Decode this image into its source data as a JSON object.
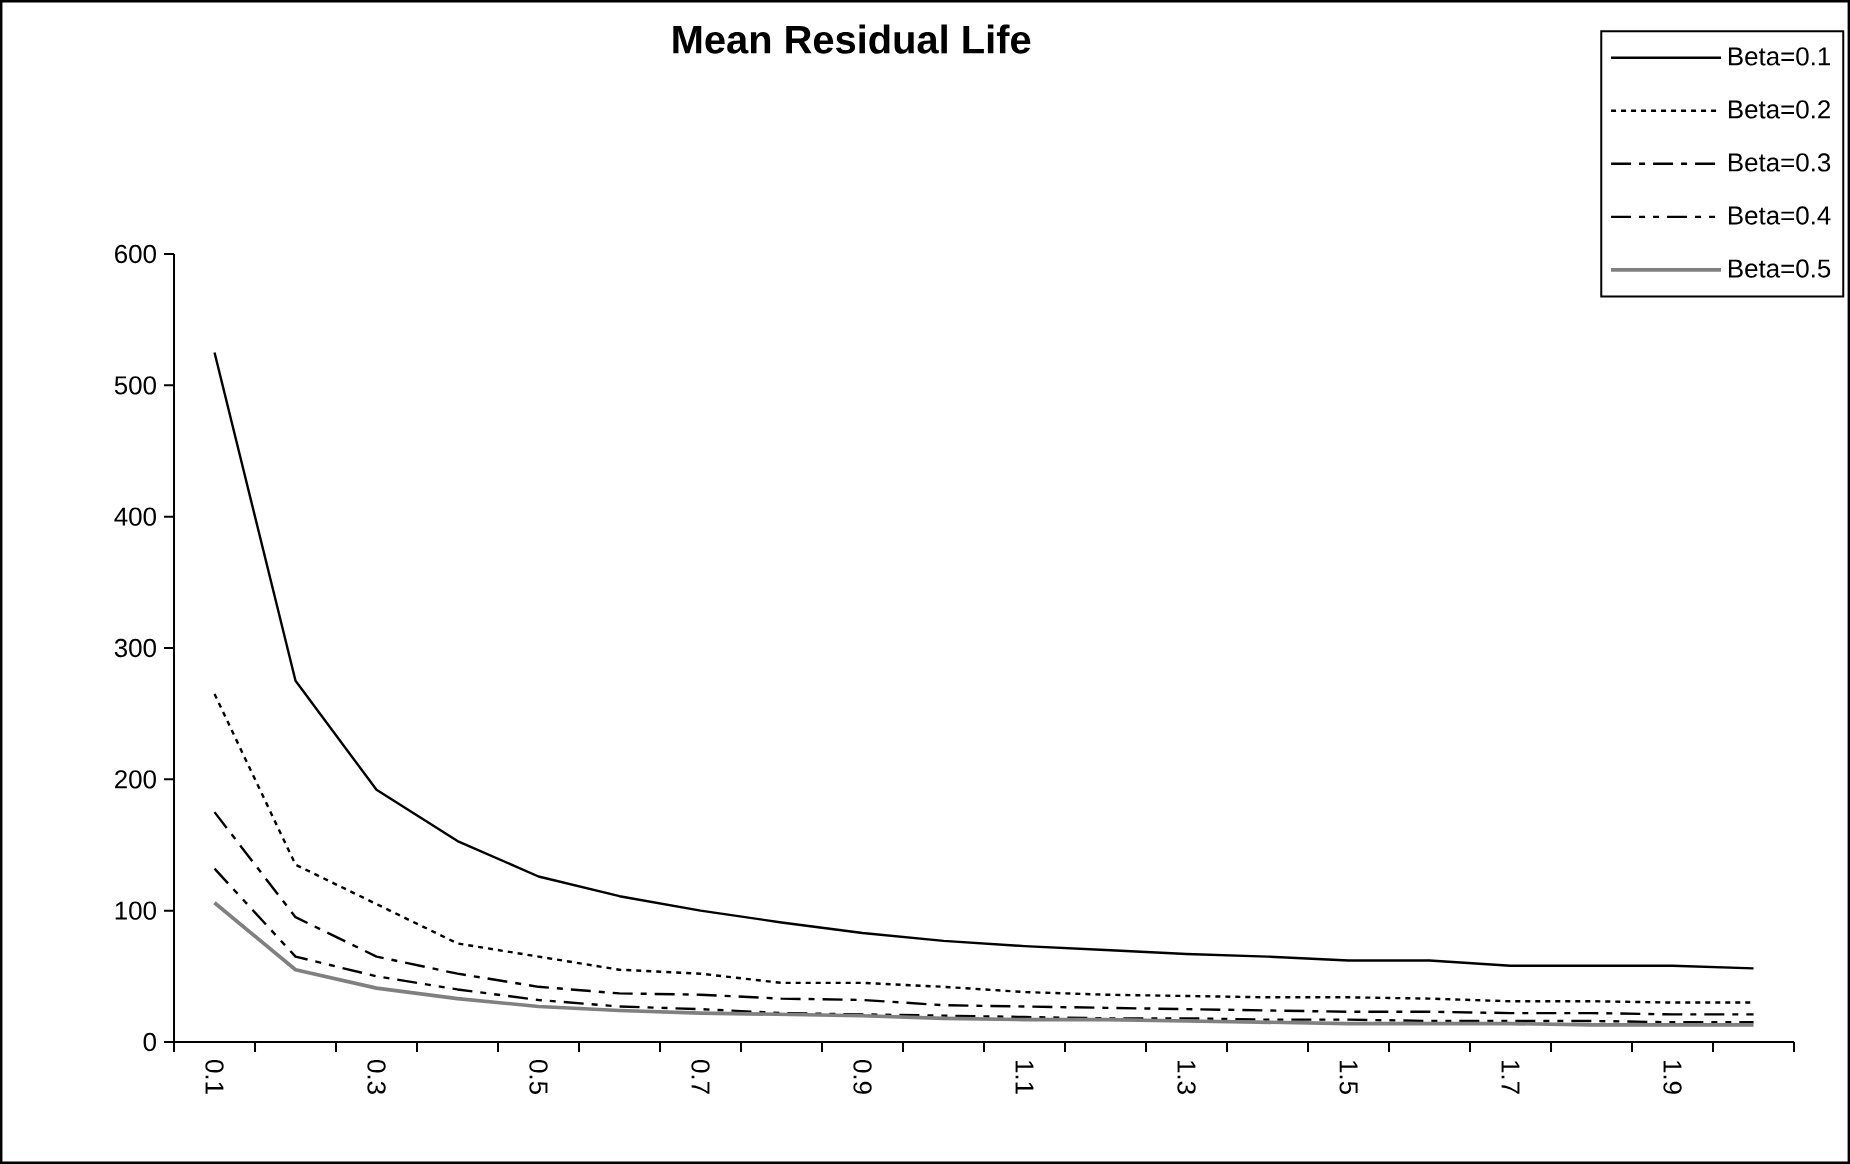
{
  "chart_data": {
    "type": "line",
    "title": "Mean Residual Life",
    "categories": [
      "0.1",
      null,
      "0.3",
      null,
      "0.5",
      null,
      "0.7",
      null,
      "0.9",
      null,
      "1.1",
      null,
      "1.3",
      null,
      "1.5",
      null,
      "1.7",
      null,
      "1.9",
      null
    ],
    "ylim": [
      0,
      600
    ],
    "yticks": [
      0,
      100,
      200,
      300,
      400,
      500,
      600
    ],
    "grid": false,
    "legend": "top right",
    "marker": "none",
    "series": [
      {
        "name": "Beta=0.1",
        "color": "#000000",
        "line_style": "solid",
        "values": [
          525,
          275,
          192,
          153,
          126,
          111,
          100,
          91,
          83,
          77,
          73,
          70,
          67,
          65,
          62,
          62,
          58,
          58,
          58,
          56
        ]
      },
      {
        "name": "Beta=0.2",
        "color": "#000000",
        "line_style": "dotted",
        "values": [
          265,
          135,
          105,
          75,
          65,
          55,
          52,
          45,
          45,
          42,
          38,
          36,
          35,
          34,
          34,
          33,
          31,
          31,
          30,
          30
        ]
      },
      {
        "name": "Beta=0.3",
        "color": "#000000",
        "line_style": "dashdot",
        "values": [
          175,
          95,
          65,
          52,
          42,
          37,
          36,
          33,
          32,
          28,
          27,
          26,
          25,
          24,
          23,
          23,
          22,
          22,
          21,
          21
        ]
      },
      {
        "name": "Beta=0.4",
        "color": "#000000",
        "line_style": "dashdotdot",
        "values": [
          132,
          65,
          50,
          40,
          32,
          27,
          25,
          22,
          21,
          20,
          19,
          18,
          18,
          17,
          17,
          16,
          16,
          16,
          15,
          15
        ]
      },
      {
        "name": "Beta=0.5",
        "color": "#808080",
        "line_style": "solid",
        "values": [
          106,
          55,
          41,
          33,
          27,
          24,
          22,
          21,
          20,
          18,
          17,
          17,
          16,
          15,
          14,
          14,
          14,
          13,
          13,
          13
        ]
      }
    ]
  }
}
